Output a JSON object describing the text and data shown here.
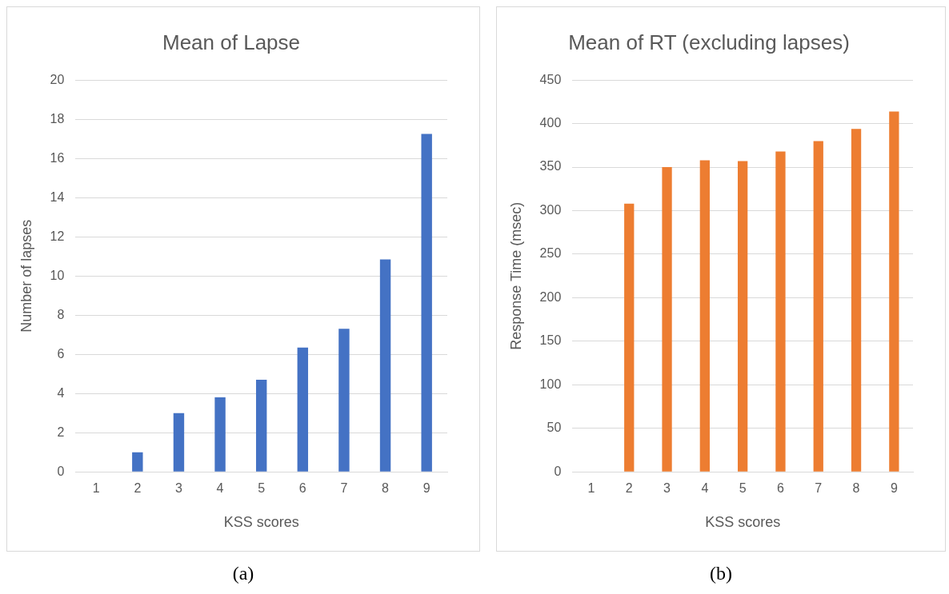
{
  "chart_data": [
    {
      "type": "bar",
      "title": "Mean of Lapse",
      "xlabel": "KSS scores",
      "ylabel": "Number of lapses",
      "categories": [
        "1",
        "2",
        "3",
        "4",
        "5",
        "6",
        "7",
        "8",
        "9"
      ],
      "values": [
        0,
        1.0,
        3.0,
        3.8,
        4.7,
        6.35,
        7.3,
        10.85,
        17.25
      ],
      "color": "#4472c4",
      "ylim": [
        0,
        20
      ],
      "yticks": [
        0,
        2,
        4,
        6,
        8,
        10,
        12,
        14,
        16,
        18,
        20
      ],
      "grid": "y",
      "legend": false,
      "annotations": [
        "(a)"
      ]
    },
    {
      "type": "bar",
      "title": "Mean of RT (excluding lapses)",
      "xlabel": "KSS scores",
      "ylabel": "Response Time (msec)",
      "categories": [
        "1",
        "2",
        "3",
        "4",
        "5",
        "6",
        "7",
        "8",
        "9"
      ],
      "values": [
        null,
        308,
        350,
        358,
        357,
        368,
        380,
        394,
        414
      ],
      "color": "#ed7d31",
      "ylim": [
        0,
        450
      ],
      "yticks": [
        0,
        50,
        100,
        150,
        200,
        250,
        300,
        350,
        400,
        450
      ],
      "grid": "y",
      "legend": false,
      "annotations": [
        "(b)"
      ]
    }
  ]
}
